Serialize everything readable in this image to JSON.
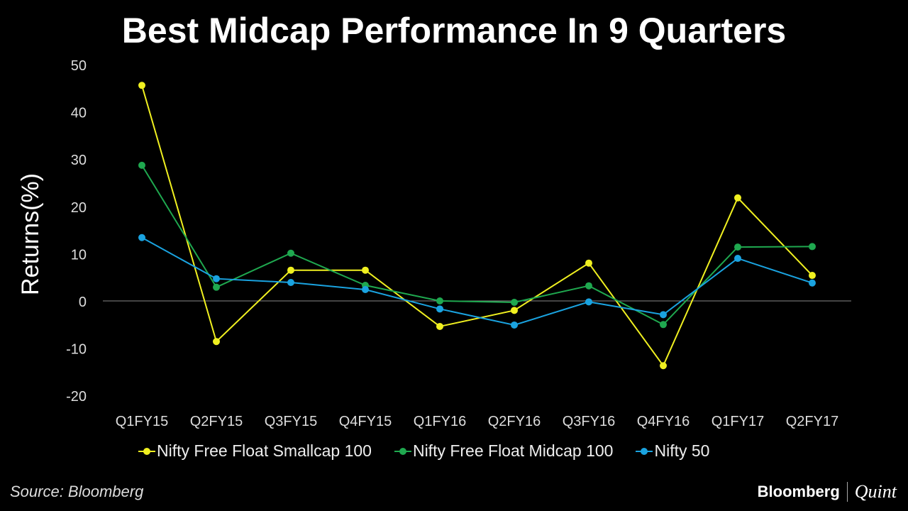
{
  "chart_data": {
    "type": "line",
    "title": "Best Midcap Performance In 9 Quarters",
    "ylabel": "Returns(%)",
    "xlabel": "",
    "ylim": [
      -20,
      50
    ],
    "yticks": [
      50,
      40,
      30,
      20,
      10,
      0,
      -10,
      -20
    ],
    "categories": [
      "Q1FY15",
      "Q2FY15",
      "Q3FY15",
      "Q4FY15",
      "Q1FY16",
      "Q2FY16",
      "Q3FY16",
      "Q4FY16",
      "Q1FY17",
      "Q2FY17"
    ],
    "series": [
      {
        "name": "Nifty Free Float Smallcap 100",
        "color": "#f0f020",
        "values": [
          45.6,
          -8.6,
          6.5,
          6.5,
          -5.4,
          -2,
          8,
          -13.7,
          21.8,
          5.4
        ]
      },
      {
        "name": "Nifty Free Float Midcap 100",
        "color": "#1fa84f",
        "values": [
          28.7,
          2.9,
          10.1,
          3.3,
          0,
          -0.3,
          3.2,
          -5,
          11.4,
          11.5
        ]
      },
      {
        "name": "Nifty 50",
        "color": "#1aa3e0",
        "values": [
          13.4,
          4.7,
          3.9,
          2.4,
          -1.7,
          -5.1,
          -0.2,
          -2.9,
          9,
          3.8
        ]
      }
    ],
    "legend_position": "bottom",
    "grid": false
  },
  "footer": {
    "source": "Source: Bloomberg",
    "brand1": "Bloomberg",
    "brand2": "Quint"
  }
}
